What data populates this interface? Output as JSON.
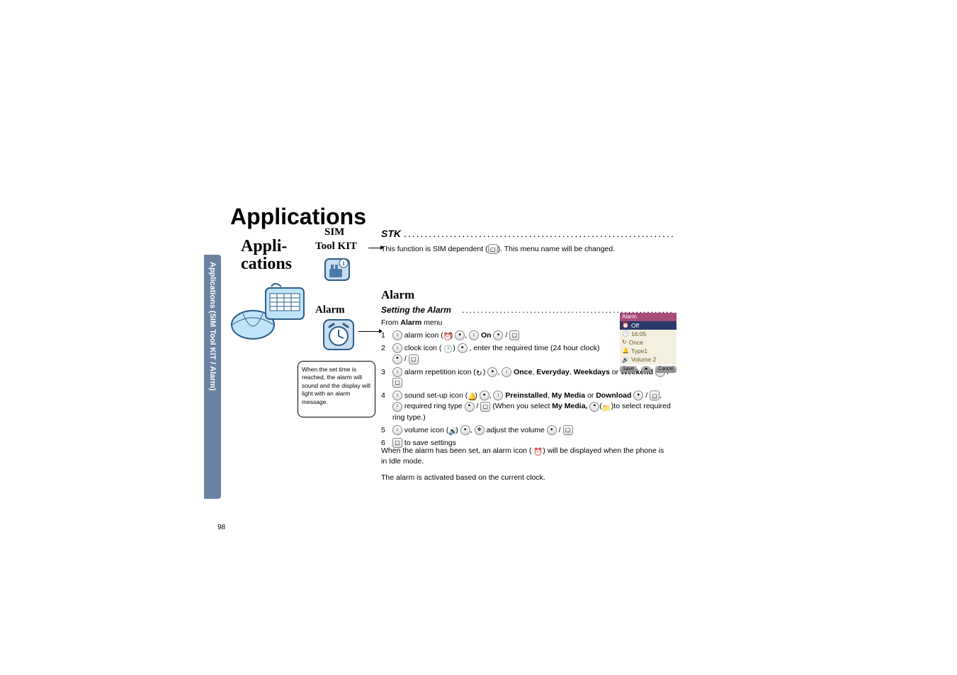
{
  "page_number": "98",
  "side_tab": "Applications (SIM Tool KIT / Alarm)",
  "main_title": "Applications",
  "app_label_1": "Appli-",
  "app_label_2": "cations",
  "sim_label": "SIM",
  "toolkit_label": "Tool KIT",
  "alarm_nav_label": "Alarm",
  "note_box": "When the set time is reached, the alarm will sound and the display will light with an alarm message.",
  "stk_heading": "STK",
  "stk_desc_1": "This function is SIM dependent (",
  "stk_desc_2": "). This menu name will be changed.",
  "alarm_heading": "Alarm",
  "setting_heading": "Setting the Alarm",
  "from_line_1": "From ",
  "from_line_2": "Alarm",
  "from_line_3": " menu",
  "steps": {
    "s1": {
      "num": "1",
      "t1": " alarm icon (",
      "t2": ") ",
      "t3": ", ",
      "t4": "On",
      "t5": " / "
    },
    "s2": {
      "num": "2",
      "t1": " clock icon ( ",
      "t2": " ) ",
      "t3": " , enter the required time (24 hour clock) ",
      "t4": " / "
    },
    "s3": {
      "num": "3",
      "t1": " alarm repetition icon (",
      "t2": ") ",
      "t3": ", ",
      "t4": "Once",
      "t5": ", ",
      "t6": "Everyday",
      "t7": ", ",
      "t8": "Weekdays",
      "t9": " or ",
      "t10": "Weekend",
      "t11": " / "
    },
    "s4": {
      "num": "4",
      "t1": " sound set-up icon (",
      "t2": ") ",
      "t3": ", ",
      "t4": "Preinstalled",
      "t5": ", ",
      "t6": "My Media",
      "t7": " or ",
      "t8": "Download",
      "t9": " / ",
      "t10": ", ",
      "t11": " required ring type ",
      "t12": " / ",
      "t13": " (When you select ",
      "t14": "My Media,",
      "t15": " ",
      "t16": "(",
      "t17": " )to select required ring type.)"
    },
    "s5": {
      "num": "5",
      "t1": " volume icon (",
      "t2": ") ",
      "t3": ", ",
      "t4": " adjust the volume ",
      "t5": " / "
    },
    "s6": {
      "num": "6",
      "t1": " to save settings"
    }
  },
  "post_1": "When the alarm has been set, an alarm icon ( ",
  "post_2": " ) will be displayed when the phone is in Idle mode.",
  "post_3": "The alarm is activated based on the current clock.",
  "phone": {
    "title": "Alarm",
    "rows": [
      {
        "icon": "⏰",
        "text": "Off",
        "sel": true
      },
      {
        "icon": "🕐",
        "text": "16:05"
      },
      {
        "icon": "↻",
        "text": "Once"
      },
      {
        "icon": "🔔",
        "text": "Type1"
      },
      {
        "icon": "🔊",
        "text": "Volume 2"
      }
    ],
    "btn_left": "Save",
    "btn_right": "Cancel"
  },
  "colors": {
    "tab_bg": "#6a83a3",
    "phone_title_bg": "#a94b7b",
    "phone_sel_bg": "#2a3a6a",
    "phone_body_bg": "#f4f0e0",
    "phone_text": "#6a5a2a"
  }
}
